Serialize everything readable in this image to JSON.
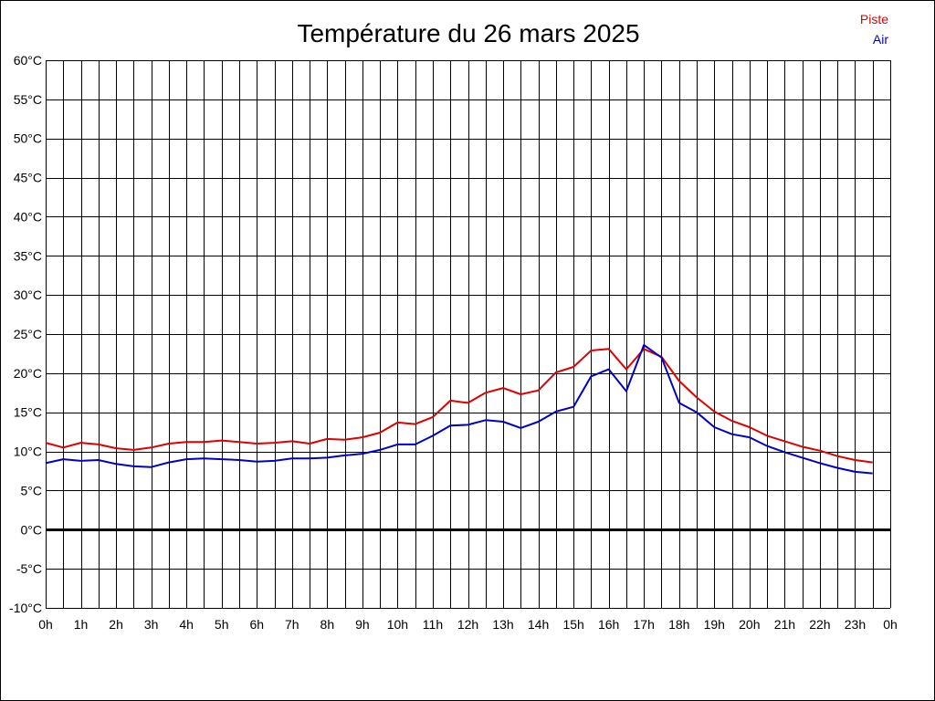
{
  "chart_data": {
    "type": "line",
    "title": "Température du 26 mars 2025",
    "xlabel": "",
    "ylabel": "",
    "ylim": [
      -10,
      60
    ],
    "xlim": [
      0,
      24
    ],
    "grid": true,
    "legend_position": "top-right",
    "y_tick_labels": [
      "60°C",
      "55°C",
      "50°C",
      "45°C",
      "40°C",
      "35°C",
      "30°C",
      "25°C",
      "20°C",
      "15°C",
      "10°C",
      "5°C",
      "0°C",
      "-5°C",
      "-10°C"
    ],
    "y_tick_values": [
      60,
      55,
      50,
      45,
      40,
      35,
      30,
      25,
      20,
      15,
      10,
      5,
      0,
      -5,
      -10
    ],
    "x_tick_labels": [
      "0h",
      "1h",
      "2h",
      "3h",
      "4h",
      "5h",
      "6h",
      "7h",
      "8h",
      "9h",
      "10h",
      "11h",
      "12h",
      "13h",
      "14h",
      "15h",
      "16h",
      "17h",
      "18h",
      "19h",
      "20h",
      "21h",
      "22h",
      "23h",
      "0h"
    ],
    "x": [
      0,
      0.5,
      1,
      1.5,
      2,
      2.5,
      3,
      3.5,
      4,
      4.5,
      5,
      5.5,
      6,
      6.5,
      7,
      7.5,
      8,
      8.5,
      9,
      9.5,
      10,
      10.5,
      11,
      11.5,
      12,
      12.5,
      13,
      13.5,
      14,
      14.5,
      15,
      15.5,
      16,
      16.5,
      17,
      17.5,
      18,
      18.5,
      19,
      19.5,
      20,
      20.5,
      21,
      21.5,
      22,
      22.5,
      23,
      23.5
    ],
    "series": [
      {
        "name": "Piste",
        "color": "#e00000",
        "values": [
          11.1,
          10.5,
          11.1,
          10.9,
          10.4,
          10.2,
          10.5,
          11.0,
          11.2,
          11.2,
          11.4,
          11.2,
          11.0,
          11.1,
          11.3,
          11.0,
          11.6,
          11.5,
          11.8,
          12.4,
          13.7,
          13.5,
          14.4,
          16.5,
          16.2,
          17.5,
          18.1,
          17.3,
          17.8,
          20.1,
          20.8,
          22.9,
          23.1,
          20.5,
          23.1,
          22.1,
          19.0,
          16.9,
          15.1,
          13.9,
          13.1,
          12.0,
          11.3,
          10.6,
          10.1,
          9.4,
          8.9,
          8.6
        ]
      },
      {
        "name": "Air",
        "color": "#0000cc",
        "values": [
          8.5,
          9.0,
          8.8,
          8.9,
          8.4,
          8.1,
          8.0,
          8.6,
          9.0,
          9.1,
          9.0,
          8.9,
          8.7,
          8.8,
          9.1,
          9.1,
          9.2,
          9.5,
          9.7,
          10.2,
          10.9,
          10.9,
          12.0,
          13.3,
          13.4,
          14.0,
          13.8,
          13.0,
          13.8,
          15.1,
          15.7,
          19.6,
          20.5,
          17.7,
          23.6,
          22.0,
          16.2,
          15.0,
          13.1,
          12.2,
          11.8,
          10.7,
          9.9,
          9.2,
          8.5,
          7.9,
          7.4,
          7.2
        ]
      }
    ]
  }
}
